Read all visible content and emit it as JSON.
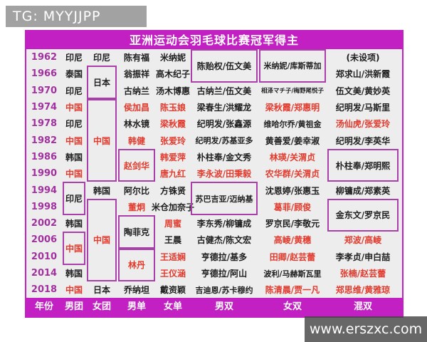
{
  "watermarks": {
    "telegram": "TG: MYYJJPP",
    "website": "www.erszxc.com"
  },
  "title": "亚洲运动会羽毛球比赛冠军得主",
  "footer": [
    "年份",
    "男团",
    "女团",
    "男单",
    "女单",
    "男双",
    "女双",
    "混双"
  ],
  "colors": {
    "banner_magenta": "#c220c2",
    "box_border_purple": "#a940a9",
    "china_red": "#e23b2e",
    "year_purple": "#a1319e",
    "table_bg": "#ededed"
  },
  "grid": {
    "columns": [
      {
        "name": "year",
        "cells": [
          {
            "t": "1962",
            "row": 1
          },
          {
            "t": "1966",
            "row": 2
          },
          {
            "t": "1970",
            "row": 3
          },
          {
            "t": "1974",
            "row": 4
          },
          {
            "t": "1978",
            "row": 5
          },
          {
            "t": "1982",
            "row": 6
          },
          {
            "t": "1986",
            "row": 7
          },
          {
            "t": "1990",
            "row": 8
          },
          {
            "t": "1994",
            "row": 9
          },
          {
            "t": "1998",
            "row": 10
          },
          {
            "t": "2002",
            "row": 11
          },
          {
            "t": "2006",
            "row": 12
          },
          {
            "t": "2010",
            "row": 13
          },
          {
            "t": "2014",
            "row": 14
          },
          {
            "t": "2018",
            "row": 15
          }
        ]
      },
      {
        "name": "men-team",
        "cells": [
          {
            "t": "印尼",
            "row": 1
          },
          {
            "t": "泰国",
            "row": 2
          },
          {
            "t": "印尼",
            "row": 3
          },
          {
            "t": "中国",
            "row": 4,
            "red": true
          },
          {
            "t": "印尼",
            "row": 5
          },
          {
            "t": "中国",
            "row": 6,
            "red": true
          },
          {
            "t": "韩国",
            "row": 7
          },
          {
            "t": "中国",
            "row": 8,
            "red": true
          },
          {
            "t": "印尼",
            "row": 9,
            "span": 2,
            "box": true
          },
          {
            "t": "韩国",
            "row": 11
          },
          {
            "t": "中国",
            "row": 12,
            "span": 2,
            "box": true,
            "red": true
          },
          {
            "t": "韩国",
            "row": 14
          },
          {
            "t": "中国",
            "row": 15,
            "red": true
          }
        ]
      },
      {
        "name": "women-team",
        "cells": [
          {
            "t": "印尼",
            "row": 1
          },
          {
            "t": "日本",
            "row": 2,
            "span": 2,
            "box": true
          },
          {
            "t": "中国",
            "row": 4,
            "span": 5,
            "box": true,
            "red": true
          },
          {
            "t": "韩国",
            "row": 9
          },
          {
            "t": "中国",
            "row": 10,
            "span": 5,
            "box": true,
            "red": true
          },
          {
            "t": "日本",
            "row": 15
          }
        ]
      },
      {
        "name": "men-singles",
        "cells": [
          {
            "t": "陈有福",
            "row": 1
          },
          {
            "t": "翁振祥",
            "row": 2
          },
          {
            "t": "古纳兰",
            "row": 3
          },
          {
            "t": "侯加昌",
            "row": 4,
            "red": true
          },
          {
            "t": "林水镜",
            "row": 5
          },
          {
            "t": "韩健",
            "row": 6,
            "red": true
          },
          {
            "t": "赵剑华",
            "row": 7,
            "span": 2,
            "box": true,
            "red": true
          },
          {
            "t": "阿尔比",
            "row": 9
          },
          {
            "t": "董炯",
            "row": 10,
            "red": true
          },
          {
            "t": "陶菲克",
            "row": 11,
            "span": 2,
            "box": true
          },
          {
            "t": "林丹",
            "row": 13,
            "span": 2,
            "box": true,
            "red": true
          },
          {
            "t": "乔纳坦",
            "row": 15
          }
        ]
      },
      {
        "name": "women-singles",
        "cells": [
          {
            "t": "米纳妮",
            "row": 1
          },
          {
            "t": "高木纪子",
            "row": 2
          },
          {
            "t": "汤木博惠",
            "row": 3
          },
          {
            "t": "陈玉娘",
            "row": 4,
            "red": true
          },
          {
            "t": "梁秋霞",
            "row": 5,
            "red": true
          },
          {
            "t": "张爱玲",
            "row": 6,
            "red": true
          },
          {
            "t": "韩爱萍",
            "row": 7,
            "red": true
          },
          {
            "t": "唐九红",
            "row": 8,
            "red": true
          },
          {
            "t": "方铢贤",
            "row": 9
          },
          {
            "t": "米仓加奈子",
            "row": 10
          },
          {
            "t": "周蜜",
            "row": 11,
            "red": true
          },
          {
            "t": "王晨",
            "row": 12
          },
          {
            "t": "王适娴",
            "row": 13,
            "red": true
          },
          {
            "t": "王仪涵",
            "row": 14,
            "red": true
          },
          {
            "t": "戴资颖",
            "row": 15
          }
        ]
      },
      {
        "name": "men-doubles",
        "cells": [
          {
            "t": "陈贻权/伍文美",
            "row": 1,
            "span": 2,
            "box": true
          },
          {
            "t": "古纳兰/伍文美",
            "row": 3
          },
          {
            "t": "梁春生/洪耀龙",
            "row": 4
          },
          {
            "t": "纪明发/张鑫源",
            "row": 5
          },
          {
            "t": "纪明发/苏基亚多",
            "row": 6
          },
          {
            "t": "朴柱奉/金文秀",
            "row": 7
          },
          {
            "t": "李永波/田秉毅",
            "row": 8,
            "red": true
          },
          {
            "t": "苏巴吉亚/迈纳基",
            "row": 9,
            "span": 2,
            "box": true
          },
          {
            "t": "李东秀/柳镛成",
            "row": 11
          },
          {
            "t": "古健杰/陈文宏",
            "row": 12
          },
          {
            "t": "亨德拉/基多",
            "row": 13
          },
          {
            "t": "亨德拉/阿山",
            "row": 14
          },
          {
            "t": "吉迪恩/苏卡穆约",
            "row": 15
          }
        ]
      },
      {
        "name": "women-doubles",
        "cells": [
          {
            "t": "米纳妮/库斯蒂加",
            "row": 1,
            "span": 2,
            "box": true
          },
          {
            "t": "相泽マチ子/梅野尾悦子",
            "row": 3
          },
          {
            "t": "梁秋霞/郑惠明",
            "row": 4,
            "red": true
          },
          {
            "t": "维哈尔乔/黄祖金",
            "row": 5
          },
          {
            "t": "黄善爱/姜幸淑",
            "row": 6
          },
          {
            "t": "林瑛/关渭贞",
            "row": 7,
            "red": true
          },
          {
            "t": "农华群/关渭贞",
            "row": 8,
            "red": true
          },
          {
            "t": "沈恩婷/张惠玉",
            "row": 9
          },
          {
            "t": "葛菲/顾俊",
            "row": 10,
            "red": true
          },
          {
            "t": "罗京民/李敬元",
            "row": 11
          },
          {
            "t": "高崚/黄穗",
            "row": 12,
            "red": true
          },
          {
            "t": "田卿/赵芸蕾",
            "row": 13,
            "red": true
          },
          {
            "t": "波利/马赫斯瓦里",
            "row": 14
          },
          {
            "t": "陈清晨/贾一凡",
            "row": 15,
            "red": true
          }
        ]
      },
      {
        "name": "mixed-doubles",
        "cells": [
          {
            "t": "(未设项)",
            "row": 1
          },
          {
            "t": "郑求山/洪新霞",
            "row": 2
          },
          {
            "t": "伍文美/黄妙英",
            "row": 3
          },
          {
            "t": "纪明发/马斯里",
            "row": 4
          },
          {
            "t": "汤仙虎/张爱玲",
            "row": 5,
            "red": true
          },
          {
            "t": "纪明发/李英华",
            "row": 6
          },
          {
            "t": "朴柱奉/郑明熙",
            "row": 7,
            "span": 2,
            "box": true
          },
          {
            "t": "柳镛成/郑素英",
            "row": 9
          },
          {
            "t": "金东文/罗京民",
            "row": 10,
            "span": 2,
            "box": true
          },
          {
            "t": "郑波/高崚",
            "row": 12,
            "red": true
          },
          {
            "t": "李孝贞/申白喆",
            "row": 13
          },
          {
            "t": "张楠/赵芸蕾",
            "row": 14,
            "red": true
          },
          {
            "t": "郑思维/黄雅琼",
            "row": 15,
            "red": true
          }
        ]
      }
    ]
  }
}
